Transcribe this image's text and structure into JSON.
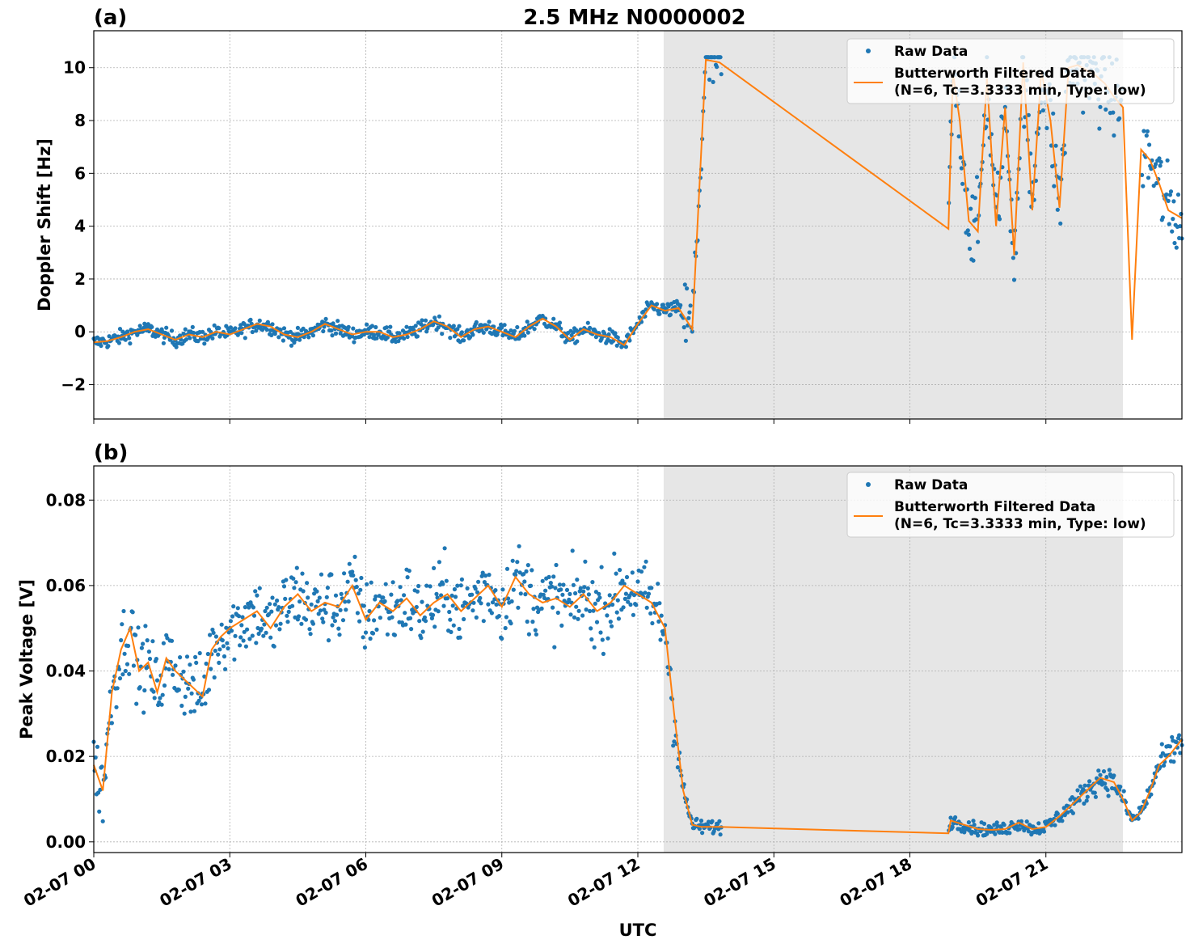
{
  "figure": {
    "title": "2.5 MHz N0000002",
    "xlabel": "UTC",
    "colors": {
      "raw": "#1f77b4",
      "filtered": "#ff7f0e",
      "night_shade": "#e6e6e6",
      "grid": "#b0b0b0"
    }
  },
  "chart_data": [
    {
      "type": "scatter",
      "panel_label": "(a)",
      "ylabel": "Doppler Shift [Hz]",
      "xlim": [
        "02-07 00:00",
        "24:00"
      ],
      "ylim": [
        -3.3,
        11.4
      ],
      "yticks": [
        "−2",
        "0",
        "2",
        "4",
        "6",
        "8",
        "10"
      ],
      "ytick_values": [
        -2,
        0,
        2,
        4,
        6,
        8,
        10
      ],
      "shaded_interval_hours": [
        12.57,
        22.7
      ],
      "grid": true,
      "legend_placement": "top-right",
      "legend": [
        "Raw Data",
        "Butterworth Filtered Data",
        "(N=6, Tc=3.3333 min, Type: low)"
      ],
      "series": [
        {
          "name": "Butterworth Filtered Data",
          "x_hours": [
            0,
            0.3,
            0.6,
            0.9,
            1.2,
            1.5,
            1.8,
            2.1,
            2.4,
            2.7,
            3.0,
            3.3,
            3.6,
            3.9,
            4.2,
            4.5,
            4.8,
            5.1,
            5.4,
            5.7,
            6.0,
            6.3,
            6.6,
            6.9,
            7.2,
            7.5,
            7.8,
            8.1,
            8.4,
            8.7,
            9.0,
            9.3,
            9.6,
            9.9,
            10.2,
            10.5,
            10.8,
            11.1,
            11.4,
            11.7,
            12.0,
            12.3,
            12.6,
            12.9,
            13.2,
            13.5,
            13.8,
            18.85,
            18.95,
            19.1,
            19.3,
            19.5,
            19.7,
            19.9,
            20.1,
            20.3,
            20.5,
            20.7,
            20.9,
            21.1,
            21.3,
            21.5,
            21.7,
            21.9,
            22.1,
            22.3,
            22.5,
            22.7,
            22.9,
            23.1,
            23.3,
            23.5,
            23.7,
            24.0
          ],
          "y": [
            -0.4,
            -0.35,
            -0.2,
            0.0,
            0.1,
            -0.1,
            -0.3,
            -0.1,
            -0.2,
            0.0,
            -0.1,
            0.1,
            0.3,
            0.2,
            -0.1,
            -0.2,
            0.0,
            0.3,
            0.1,
            -0.1,
            0.0,
            0.0,
            -0.2,
            -0.1,
            0.1,
            0.4,
            0.2,
            -0.2,
            0.1,
            0.2,
            0.0,
            -0.2,
            0.2,
            0.5,
            0.2,
            -0.3,
            0.1,
            -0.1,
            -0.2,
            -0.5,
            0.3,
            1.0,
            0.8,
            0.9,
            0.1,
            10.3,
            10.2,
            3.9,
            9.8,
            8.0,
            4.2,
            3.8,
            9.6,
            4.0,
            8.5,
            2.9,
            10.2,
            4.6,
            9.9,
            8.0,
            4.7,
            10.0,
            10.1,
            9.9,
            9.7,
            9.4,
            8.9,
            8.5,
            -0.3,
            6.9,
            6.5,
            5.6,
            4.6,
            4.3
          ]
        }
      ]
    },
    {
      "type": "scatter",
      "panel_label": "(b)",
      "ylabel": "Peak Voltage [V]",
      "xlim": [
        "02-07 00:00",
        "24:00"
      ],
      "ylim": [
        -0.0025,
        0.088
      ],
      "yticks": [
        "0.00",
        "0.02",
        "0.04",
        "0.06",
        "0.08"
      ],
      "ytick_values": [
        0.0,
        0.02,
        0.04,
        0.06,
        0.08
      ],
      "xticks": [
        "02-07 00",
        "02-07 03",
        "02-07 06",
        "02-07 09",
        "02-07 12",
        "02-07 15",
        "02-07 18",
        "02-07 21"
      ],
      "xtick_hours": [
        0,
        3,
        6,
        9,
        12,
        15,
        18,
        21
      ],
      "shaded_interval_hours": [
        12.57,
        22.7
      ],
      "grid": true,
      "legend_placement": "top-right",
      "legend": [
        "Raw Data",
        "Butterworth Filtered Data",
        "(N=6, Tc=3.3333 min, Type: low)"
      ],
      "series": [
        {
          "name": "Butterworth Filtered Data",
          "x_hours": [
            0,
            0.2,
            0.4,
            0.6,
            0.8,
            1.0,
            1.2,
            1.4,
            1.6,
            1.8,
            2.0,
            2.2,
            2.4,
            2.6,
            2.8,
            3.0,
            3.3,
            3.6,
            3.9,
            4.2,
            4.5,
            4.8,
            5.1,
            5.4,
            5.7,
            6.0,
            6.3,
            6.6,
            6.9,
            7.2,
            7.5,
            7.8,
            8.1,
            8.4,
            8.7,
            9.0,
            9.3,
            9.6,
            9.9,
            10.2,
            10.5,
            10.8,
            11.1,
            11.4,
            11.7,
            12.0,
            12.3,
            12.6,
            12.8,
            13.0,
            13.2,
            13.4,
            13.8,
            18.85,
            18.9,
            19.2,
            19.5,
            19.8,
            20.1,
            20.4,
            20.7,
            21.0,
            21.3,
            21.6,
            21.9,
            22.2,
            22.5,
            22.7,
            22.9,
            23.1,
            23.3,
            23.5,
            23.7,
            24.0
          ],
          "y": [
            0.018,
            0.012,
            0.035,
            0.045,
            0.05,
            0.04,
            0.042,
            0.035,
            0.043,
            0.04,
            0.038,
            0.036,
            0.034,
            0.045,
            0.048,
            0.05,
            0.052,
            0.054,
            0.05,
            0.055,
            0.058,
            0.054,
            0.056,
            0.055,
            0.06,
            0.052,
            0.056,
            0.054,
            0.057,
            0.053,
            0.056,
            0.058,
            0.054,
            0.057,
            0.06,
            0.055,
            0.062,
            0.058,
            0.056,
            0.057,
            0.055,
            0.058,
            0.054,
            0.056,
            0.06,
            0.058,
            0.056,
            0.05,
            0.03,
            0.012,
            0.004,
            0.0035,
            0.0035,
            0.002,
            0.005,
            0.004,
            0.003,
            0.0028,
            0.003,
            0.0045,
            0.003,
            0.0035,
            0.006,
            0.009,
            0.012,
            0.015,
            0.014,
            0.01,
            0.005,
            0.007,
            0.012,
            0.018,
            0.02,
            0.024
          ]
        }
      ]
    }
  ]
}
